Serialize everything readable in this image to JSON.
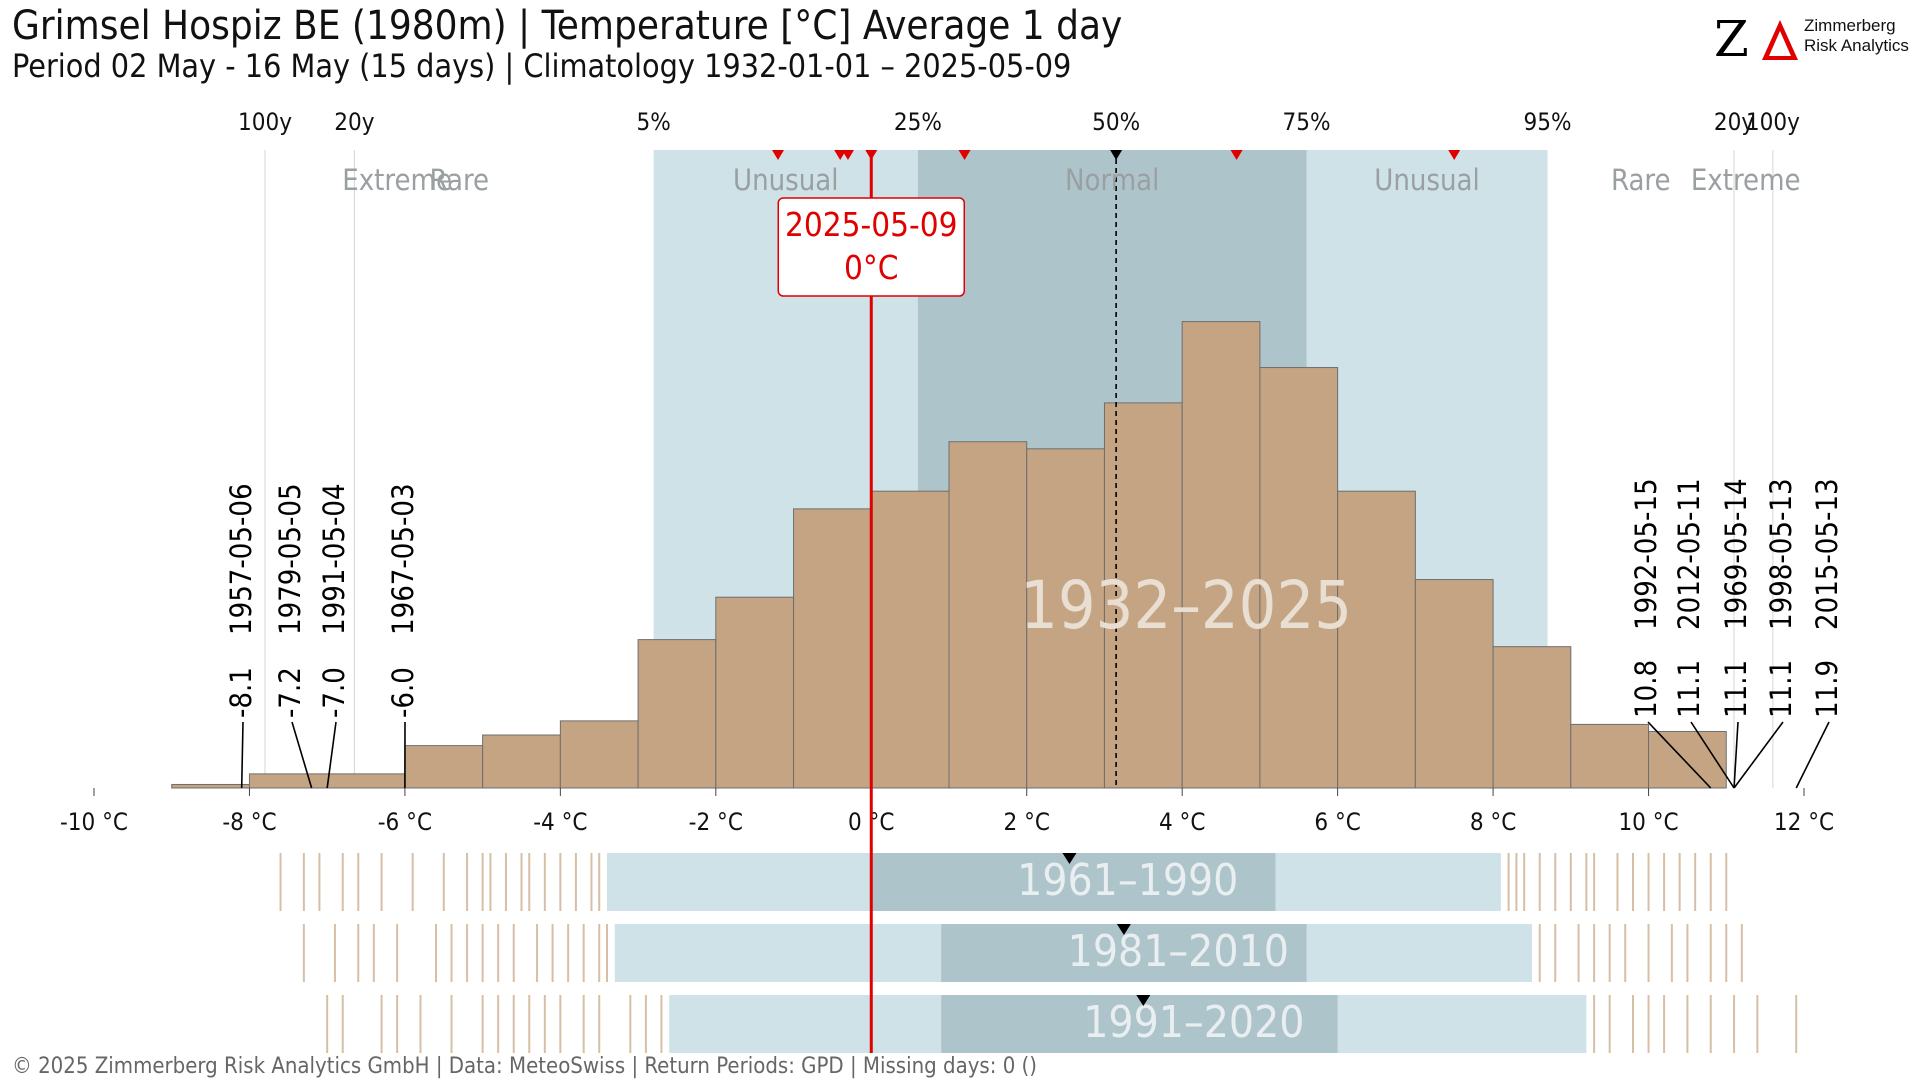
{
  "header": {
    "title": "Grimsel Hospiz  BE (1980m) | Temperature [°C] Average 1 day",
    "subtitle": "Period 02 May - 16 May (15 days) | Climatology 1932-01-01 – 2025-05-09"
  },
  "logo": {
    "mark": "ZΔ",
    "name": "Zimmerberg",
    "sub": "Risk Analytics"
  },
  "footer": "©  2025 Zimmerberg Risk Analytics GmbH | Data: MeteoSwiss | Return Periods: GPD | Missing days: 0 ()",
  "colors": {
    "bars": "#c4a483",
    "band_unusual": "#cfe2e8",
    "band_normal": "#aec4cb",
    "current": "#e00000",
    "band_text": "#9aa0a2",
    "period_text": "#e8dfd2",
    "marker": "#000000"
  },
  "chart_data": {
    "type": "bar",
    "title": "Grimsel Hospiz  BE (1980m) | Temperature [°C] Average 1 day",
    "xlim": [
      -10,
      12
    ],
    "x_ticks": [
      -10,
      -8,
      -6,
      -4,
      -2,
      0,
      2,
      4,
      6,
      8,
      10,
      12
    ],
    "x_tick_labels": [
      "-10 °C",
      "-8 °C",
      "-6 °C",
      "-4 °C",
      "-2 °C",
      "0 °C",
      "2 °C",
      "4 °C",
      "6 °C",
      "8 °C",
      "10 °C",
      "12 °C"
    ],
    "period_label": "1932–2025",
    "histogram": {
      "bin_width": 1,
      "bins": [
        {
          "from": -9,
          "to": -8,
          "value": 1
        },
        {
          "from": -8,
          "to": -6,
          "value": 4
        },
        {
          "from": -6,
          "to": -5,
          "value": 12
        },
        {
          "from": -5,
          "to": -4,
          "value": 15
        },
        {
          "from": -4,
          "to": -3,
          "value": 19
        },
        {
          "from": -3,
          "to": -2,
          "value": 42
        },
        {
          "from": -2,
          "to": -1,
          "value": 54
        },
        {
          "from": -1,
          "to": 0,
          "value": 79
        },
        {
          "from": 0,
          "to": 1,
          "value": 84
        },
        {
          "from": 1,
          "to": 2,
          "value": 98
        },
        {
          "from": 2,
          "to": 3,
          "value": 96
        },
        {
          "from": 3,
          "to": 4,
          "value": 109
        },
        {
          "from": 4,
          "to": 5,
          "value": 132
        },
        {
          "from": 5,
          "to": 6,
          "value": 119
        },
        {
          "from": 6,
          "to": 7,
          "value": 84
        },
        {
          "from": 7,
          "to": 8,
          "value": 59
        },
        {
          "from": 8,
          "to": 9,
          "value": 40
        },
        {
          "from": 9,
          "to": 10,
          "value": 18
        },
        {
          "from": 10,
          "to": 11,
          "value": 16
        }
      ],
      "ymax": 150
    },
    "percentiles": [
      {
        "label": "5%",
        "value": -2.8
      },
      {
        "label": "25%",
        "value": 0.6
      },
      {
        "label": "50%",
        "value": 3.15
      },
      {
        "label": "75%",
        "value": 5.6
      },
      {
        "label": "95%",
        "value": 8.7
      }
    ],
    "return_periods": [
      {
        "label": "100y",
        "value": -7.8
      },
      {
        "label": "20y",
        "value": -6.65
      },
      {
        "label": "20y",
        "value": 11.1
      },
      {
        "label": "100y",
        "value": 11.6
      }
    ],
    "categories": [
      {
        "label": "Extreme",
        "from": -10,
        "to": -7.8,
        "text_at": -6.1
      },
      {
        "label": "Rare",
        "from": -7.8,
        "to": -2.8,
        "text_at": -5.3
      },
      {
        "label": "Unusual",
        "from": -2.8,
        "to": 0.6,
        "text_at": -1.1
      },
      {
        "label": "Normal",
        "from": 0.6,
        "to": 5.6,
        "text_at": 3.1
      },
      {
        "label": "Unusual",
        "from": 5.6,
        "to": 8.7,
        "text_at": 7.15
      },
      {
        "label": "Rare",
        "from": 8.7,
        "to": 11.1,
        "text_at": 9.9
      },
      {
        "label": "Extreme",
        "from": 11.1,
        "to": 12,
        "text_at": 11.25
      }
    ],
    "recent_markers": [
      -1.2,
      -0.4,
      -0.3,
      0.0,
      1.2,
      4.7,
      7.5
    ],
    "median_marker": 3.15,
    "current": {
      "date": "2025-05-09",
      "value": 0.0,
      "label": "0°C"
    },
    "extremes_low": [
      {
        "date": "1957-05-06",
        "value": -8.1,
        "label": "-8.1"
      },
      {
        "date": "1979-05-05",
        "value": -7.2,
        "label": "-7.2"
      },
      {
        "date": "1991-05-04",
        "value": -7.0,
        "label": "-7.0"
      },
      {
        "date": "1967-05-03",
        "value": -6.0,
        "label": "-6.0"
      }
    ],
    "extremes_high": [
      {
        "date": "1992-05-15",
        "value": 10.8,
        "label": "10.8"
      },
      {
        "date": "2012-05-11",
        "value": 11.1,
        "label": "11.1"
      },
      {
        "date": "1969-05-14",
        "value": 11.1,
        "label": "11.1"
      },
      {
        "date": "1998-05-13",
        "value": 11.1,
        "label": "11.1"
      },
      {
        "date": "2015-05-13",
        "value": 11.9,
        "label": "11.9"
      }
    ],
    "normals": [
      {
        "label": "1961–1990",
        "rug_from": -7.6,
        "rug_to": 11.0,
        "p5": -3.4,
        "p25": 0.0,
        "p75": 5.2,
        "p95": 8.1,
        "median": 2.55,
        "rug": [
          -7.6,
          -7.3,
          -7.1,
          -6.8,
          -6.6,
          -6.3,
          -5.9,
          -5.5,
          -5.2,
          -5.0,
          -4.9,
          -4.7,
          -4.5,
          -4.4,
          -4.2,
          -4.0,
          -3.8,
          -3.6,
          -3.5,
          8.2,
          8.3,
          8.4,
          8.6,
          8.8,
          9.0,
          9.2,
          9.3,
          9.6,
          9.8,
          10.0,
          10.2,
          10.4,
          10.6,
          10.8,
          11.0
        ]
      },
      {
        "label": "1981–2010",
        "rug_from": -7.3,
        "rug_to": 11.2,
        "p5": -3.3,
        "p25": 0.9,
        "p75": 5.6,
        "p95": 8.5,
        "median": 3.25,
        "rug": [
          -7.3,
          -6.9,
          -6.6,
          -6.4,
          -6.1,
          -5.6,
          -5.4,
          -5.2,
          -5.0,
          -4.8,
          -4.6,
          -4.3,
          -4.1,
          -3.9,
          -3.7,
          -3.5,
          -3.4,
          8.6,
          8.8,
          9.1,
          9.3,
          9.5,
          9.7,
          10.0,
          10.3,
          10.5,
          10.8,
          11.0,
          11.2
        ]
      },
      {
        "label": "1991–2020",
        "rug_from": -7.0,
        "rug_to": 11.9,
        "p5": -2.6,
        "p25": 0.9,
        "p75": 6.0,
        "p95": 9.2,
        "median": 3.5,
        "rug": [
          -7.0,
          -6.8,
          -6.3,
          -6.1,
          -5.8,
          -5.4,
          -5.0,
          -4.8,
          -4.6,
          -4.4,
          -4.2,
          -4.0,
          -3.7,
          -3.5,
          -3.1,
          -2.9,
          -2.7,
          9.3,
          9.5,
          9.8,
          10.0,
          10.2,
          10.5,
          10.8,
          11.1,
          11.4,
          11.9
        ]
      }
    ]
  }
}
